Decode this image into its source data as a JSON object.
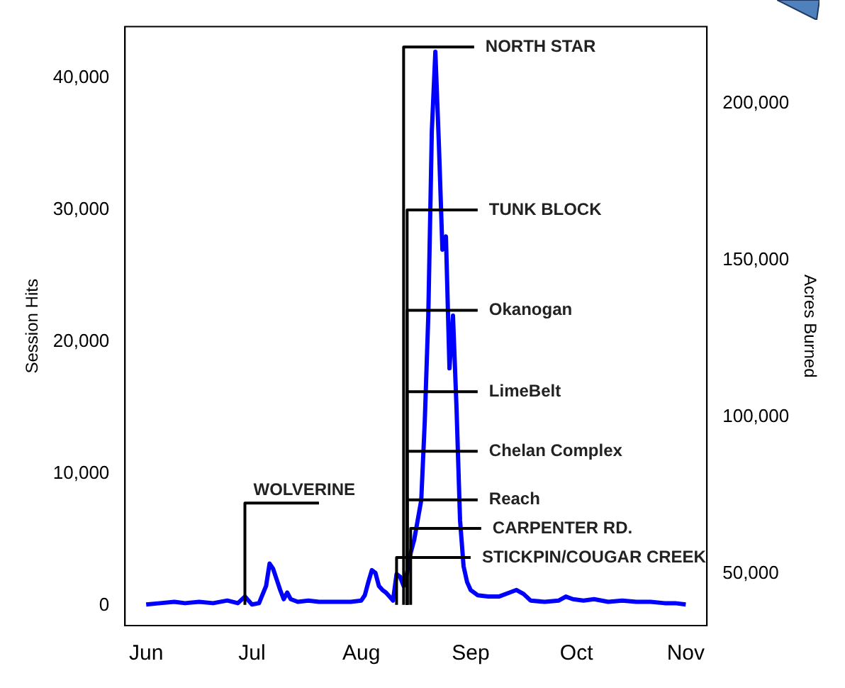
{
  "chart_data": {
    "type": "line",
    "ylabel": "Session Hits",
    "y2label": "Acres Burned",
    "xlim": [
      "--05-26",
      "--11-07"
    ],
    "xticks": [
      {
        "value": "--06-01",
        "label": "Jun"
      },
      {
        "value": "--07-01",
        "label": "Jul"
      },
      {
        "value": "--08-01",
        "label": "Aug"
      },
      {
        "value": "--09-01",
        "label": "Sep"
      },
      {
        "value": "--10-01",
        "label": "Oct"
      },
      {
        "value": "--11-01",
        "label": "Nov"
      }
    ],
    "ylim": [
      -1500,
      43900
    ],
    "yticks": [
      {
        "value": 0,
        "label": "0"
      },
      {
        "value": 10000,
        "label": "10,000"
      },
      {
        "value": 20000,
        "label": "20,000"
      },
      {
        "value": 30000,
        "label": "30,000"
      },
      {
        "value": 40000,
        "label": "40,000"
      }
    ],
    "y2lim": [
      33400,
      224500
    ],
    "y2ticks": [
      {
        "value": 50000,
        "label": "50,000"
      },
      {
        "value": 100000,
        "label": "100,000"
      },
      {
        "value": 150000,
        "label": "150,000"
      },
      {
        "value": 200000,
        "label": "200,000"
      }
    ],
    "grid": false,
    "legend": false,
    "marker": "none",
    "series": [
      {
        "color": "#0000ff",
        "x": [
          "--06-01",
          "--06-05",
          "--06-09",
          "--06-12",
          "--06-16",
          "--06-20",
          "--06-24",
          "--06-27",
          "--06-29",
          "--07-01",
          "--07-03",
          "--07-05",
          "--07-06",
          "--07-07",
          "--07-08",
          "--07-09",
          "--07-10",
          "--07-11",
          "--07-12",
          "--07-14",
          "--07-17",
          "--07-20",
          "--07-23",
          "--07-26",
          "--07-29",
          "--08-01",
          "--08-02",
          "--08-03",
          "--08-04",
          "--08-05",
          "--08-06",
          "--08-07",
          "--08-08",
          "--08-09",
          "--08-10",
          "--08-11",
          "--08-12",
          "--08-13",
          "--08-14",
          "--08-15",
          "--08-16",
          "--08-17",
          "--08-18",
          "--08-19",
          "--08-20",
          "--08-21",
          "--08-22",
          "--08-23",
          "--08-24",
          "--08-25",
          "--08-26",
          "--08-27",
          "--08-28",
          "--08-29",
          "--08-30",
          "--08-31",
          "--09-01",
          "--09-03",
          "--09-06",
          "--09-09",
          "--09-12",
          "--09-14",
          "--09-16",
          "--09-18",
          "--09-22",
          "--09-26",
          "--09-28",
          "--09-30",
          "--10-03",
          "--10-06",
          "--10-10",
          "--10-14",
          "--10-18",
          "--10-22",
          "--10-26",
          "--10-29",
          "--11-01"
        ],
        "values": [
          100,
          200,
          300,
          200,
          300,
          200,
          400,
          200,
          700,
          100,
          200,
          1500,
          3200,
          2800,
          2000,
          1200,
          500,
          1000,
          500,
          300,
          400,
          300,
          300,
          300,
          300,
          400,
          800,
          1800,
          2700,
          2500,
          1500,
          1200,
          1000,
          700,
          400,
          2400,
          2200,
          1500,
          2500,
          4000,
          5000,
          6500,
          8000,
          14000,
          22000,
          36000,
          42000,
          35000,
          27000,
          28000,
          18000,
          22000,
          15000,
          6500,
          3000,
          1800,
          1200,
          800,
          700,
          700,
          1000,
          1200,
          900,
          400,
          300,
          400,
          700,
          500,
          400,
          500,
          300,
          400,
          300,
          300,
          200,
          200,
          100
        ]
      },
      {
        "axis": "y2",
        "name": "WOLVERINE",
        "color": "#000000",
        "x": [
          "--06-29",
          "--06-29",
          "--07-20"
        ],
        "values": [
          40000,
          72500,
          72500
        ]
      },
      {
        "axis": "y2",
        "name": "NORTH STAR",
        "color": "#000000",
        "x": [
          "--08-13",
          "--08-13",
          "--09-02"
        ],
        "values": [
          40000,
          218000,
          218000
        ]
      },
      {
        "axis": "y2",
        "name": "TUNK BLOCK",
        "color": "#000000",
        "x": [
          "--08-14",
          "--08-14",
          "--09-03"
        ],
        "values": [
          40000,
          166000,
          166000
        ]
      },
      {
        "axis": "y2",
        "name": "Okanogan",
        "color": "#000000",
        "x": [
          "--08-14",
          "--08-14",
          "--09-03"
        ],
        "values": [
          40000,
          134000,
          134000
        ]
      },
      {
        "axis": "y2",
        "name": "LimeBelt",
        "color": "#000000",
        "x": [
          "--08-14",
          "--08-14",
          "--09-03"
        ],
        "values": [
          40000,
          108000,
          108000
        ]
      },
      {
        "axis": "y2",
        "name": "Chelan Complex",
        "color": "#000000",
        "x": [
          "--08-14",
          "--08-14",
          "--09-03"
        ],
        "values": [
          40000,
          89000,
          89000
        ]
      },
      {
        "axis": "y2",
        "name": "Reach",
        "color": "#000000",
        "x": [
          "--08-14",
          "--08-14",
          "--09-03"
        ],
        "values": [
          40000,
          73500,
          73500
        ]
      },
      {
        "axis": "y2",
        "name": "CARPENTER RD.",
        "color": "#000000",
        "x": [
          "--08-15",
          "--08-15",
          "--09-04"
        ],
        "values": [
          40000,
          64400,
          64400
        ]
      },
      {
        "axis": "y2",
        "name": "STICKPIN/COUGAR CREEK",
        "color": "#000000",
        "x": [
          "--08-11",
          "--08-11",
          "--09-01"
        ],
        "values": [
          40000,
          55100,
          55100
        ]
      }
    ]
  }
}
